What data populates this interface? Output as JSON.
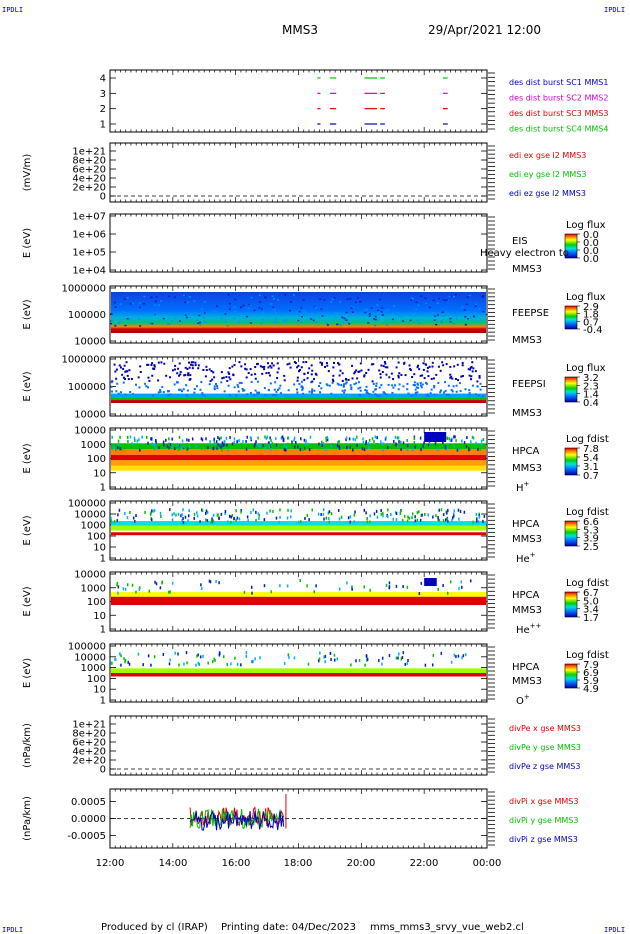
{
  "header": {
    "title": "MMS3",
    "date": "29/Apr/2021 12:00",
    "corner": "IPDLI"
  },
  "footer": {
    "produced": "Produced by cl (IRAP)",
    "printing": "Printing date: 04/Dec/2023",
    "script": "mms_mms3_srvy_vue_web2.cl"
  },
  "time_axis": {
    "labels": [
      "12:00",
      "14:00",
      "16:00",
      "18:00",
      "20:00",
      "22:00",
      "00:00"
    ]
  },
  "colors": {
    "red": "#e00000",
    "green": "#00c000",
    "blue": "#0000c0",
    "magenta": "#d000d0"
  },
  "chart_data": [
    {
      "type": "scatter",
      "name": "burst",
      "yticks": [
        "1",
        "2",
        "3",
        "4"
      ],
      "legend": [
        "des dist burst SC1 MMS1",
        "des dist burst SC2 MMS2",
        "des dist burst SC3 MMS3",
        "des dist burst SC4 MMS4"
      ],
      "legend_colors": [
        "#0000c0",
        "#d000d0",
        "#e00000",
        "#00c000"
      ]
    },
    {
      "type": "line",
      "name": "edi",
      "ylabel": "(mV/m)",
      "yticks": [
        "0",
        "2e+20",
        "4e+20",
        "6e+20",
        "8e+20",
        "1e+21"
      ],
      "legend": [
        "edi ex gse l2 MMS3",
        "edi ey gse l2 MMS3",
        "edi ez gse l2 MMS3"
      ],
      "legend_colors": [
        "#e00000",
        "#00c000",
        "#0000c0"
      ]
    },
    {
      "type": "heatmap",
      "name": "eis",
      "ylabel": "E (eV)",
      "yticks": [
        "1e+04",
        "1e+05",
        "1e+06",
        "1e+07"
      ],
      "label_top": "EIS",
      "label_mid": "Heavy electron to",
      "label_bot": "MMS3",
      "cb_title": "Log flux",
      "cb_ticks": [
        "0.0",
        "0.0",
        "0.0",
        "0.0"
      ]
    },
    {
      "type": "heatmap",
      "name": "feeps-e",
      "ylabel": "E (eV)",
      "yticks": [
        "10000",
        "100000",
        "1000000"
      ],
      "label_top": "FEEPSE",
      "label_bot": "MMS3",
      "cb_title": "Log flux",
      "cb_ticks": [
        "2.9",
        "1.8",
        "0.7",
        "-0.4"
      ]
    },
    {
      "type": "heatmap",
      "name": "feeps-i",
      "ylabel": "E (eV)",
      "yticks": [
        "10000",
        "100000",
        "1000000"
      ],
      "label_top": "FEEPSI",
      "label_bot": "MMS3",
      "cb_title": "Log flux",
      "cb_ticks": [
        "3.2",
        "2.3",
        "1.4",
        "0.4"
      ]
    },
    {
      "type": "heatmap",
      "name": "hpca-h",
      "ylabel": "E (eV)",
      "yticks": [
        "1",
        "10",
        "100",
        "1000",
        "10000"
      ],
      "label_top": "HPCA",
      "label_bot": "MMS3",
      "species": "H",
      "charge": "+",
      "cb_title": "Log fdist",
      "cb_ticks": [
        "7.8",
        "5.4",
        "3.1",
        "0.7"
      ]
    },
    {
      "type": "heatmap",
      "name": "hpca-he",
      "ylabel": "E (eV)",
      "yticks": [
        "1",
        "10",
        "100",
        "1000",
        "10000",
        "100000"
      ],
      "label_top": "HPCA",
      "label_bot": "MMS3",
      "species": "He",
      "charge": "+",
      "cb_title": "Log fdist",
      "cb_ticks": [
        "6.6",
        "5.3",
        "3.9",
        "2.5"
      ]
    },
    {
      "type": "heatmap",
      "name": "hpca-he2",
      "ylabel": "E (eV)",
      "yticks": [
        "1",
        "10",
        "100",
        "1000",
        "10000"
      ],
      "label_top": "HPCA",
      "label_bot": "MMS3",
      "species": "He",
      "charge": "++",
      "cb_title": "Log fdist",
      "cb_ticks": [
        "6.7",
        "5.0",
        "3.4",
        "1.7"
      ]
    },
    {
      "type": "heatmap",
      "name": "hpca-o",
      "ylabel": "E (eV)",
      "yticks": [
        "1",
        "10",
        "100",
        "1000",
        "10000",
        "100000"
      ],
      "label_top": "HPCA",
      "label_bot": "MMS3",
      "species": "O",
      "charge": "+",
      "cb_title": "Log fdist",
      "cb_ticks": [
        "7.9",
        "6.9",
        "5.9",
        "4.9"
      ]
    },
    {
      "type": "line",
      "name": "divpe",
      "ylabel": "(nPa/km)",
      "yticks": [
        "0",
        "2e+20",
        "4e+20",
        "6e+20",
        "8e+20",
        "1e+21"
      ],
      "legend": [
        "divPe x gse MMS3",
        "divPe y gse MMS3",
        "divPe z gse MMS3"
      ],
      "legend_colors": [
        "#e00000",
        "#00c000",
        "#0000c0"
      ]
    },
    {
      "type": "line",
      "name": "divpi",
      "ylabel": "(nPa/km)",
      "yticks": [
        "-0.0005",
        "0.0000",
        "0.0005"
      ],
      "legend": [
        "divPi x gse MMS3",
        "divPi y gse MMS3",
        "divPi z gse MMS3"
      ],
      "legend_colors": [
        "#e00000",
        "#00c000",
        "#0000c0"
      ]
    }
  ]
}
